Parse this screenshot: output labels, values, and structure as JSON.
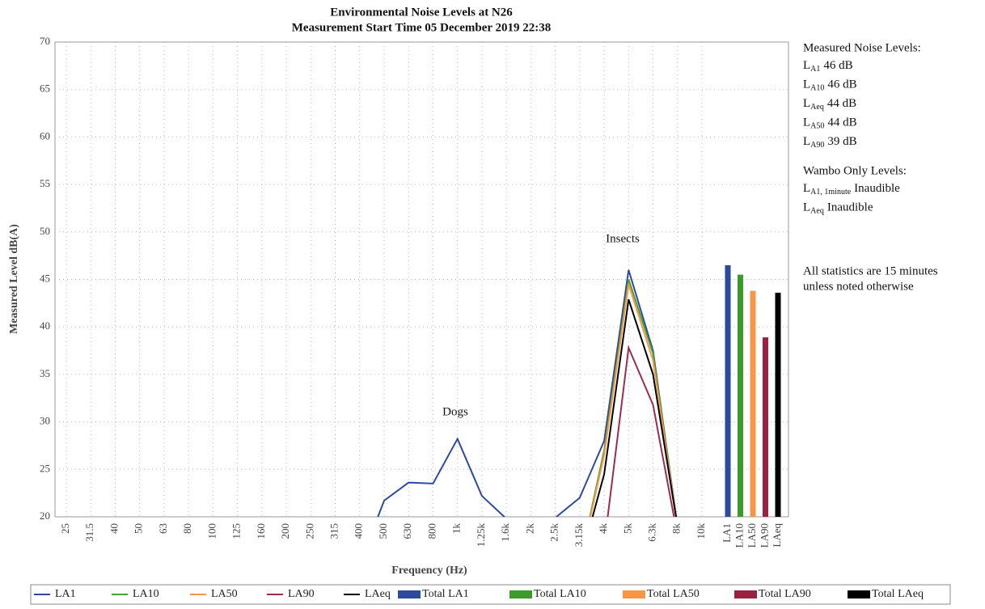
{
  "chart_data": {
    "type": "line",
    "title": "Environmental Noise Levels at N26",
    "subtitle": "Measurement Start Time 05 December 2019 22:38",
    "xlabel": "Frequency (Hz)",
    "ylabel": "Measured Level dB(A)",
    "categories": [
      "25",
      "31.5",
      "40",
      "50",
      "63",
      "80",
      "100",
      "125",
      "160",
      "200",
      "250",
      "315",
      "400",
      "500",
      "630",
      "800",
      "1k",
      "1.25k",
      "1.6k",
      "2k",
      "2.5k",
      "3.15k",
      "4k",
      "5k",
      "6.3k",
      "8k",
      "10k"
    ],
    "series": [
      {
        "name": "LA1",
        "color": "#2e4aa0",
        "values": [
          null,
          null,
          null,
          null,
          null,
          null,
          null,
          null,
          null,
          null,
          null,
          null,
          15,
          21.7,
          23.6,
          23.5,
          28.2,
          22.2,
          19.8,
          18,
          19.9,
          22,
          28,
          46,
          37.5,
          19,
          null
        ]
      },
      {
        "name": "LA10",
        "color": "#4aa032",
        "values": [
          null,
          null,
          null,
          null,
          null,
          null,
          null,
          null,
          null,
          null,
          null,
          null,
          null,
          null,
          null,
          null,
          null,
          null,
          null,
          null,
          null,
          15,
          27,
          45,
          37.2,
          19,
          null
        ]
      },
      {
        "name": "LA50",
        "color": "#f79646",
        "values": [
          null,
          null,
          null,
          null,
          null,
          null,
          null,
          null,
          null,
          null,
          null,
          null,
          null,
          null,
          null,
          null,
          null,
          null,
          null,
          null,
          null,
          15,
          26.5,
          44.5,
          36.5,
          19,
          null
        ]
      },
      {
        "name": "LA90",
        "color": "#9b2c50",
        "values": [
          null,
          null,
          null,
          null,
          null,
          null,
          null,
          null,
          null,
          null,
          null,
          null,
          null,
          null,
          null,
          null,
          null,
          null,
          null,
          null,
          null,
          null,
          17,
          37.8,
          31.8,
          18,
          null
        ]
      },
      {
        "name": "LAeq",
        "color": "#000000",
        "values": [
          null,
          null,
          null,
          null,
          null,
          null,
          null,
          null,
          null,
          null,
          null,
          null,
          null,
          null,
          null,
          null,
          null,
          null,
          null,
          null,
          null,
          15,
          24.5,
          42.9,
          35,
          19,
          null
        ]
      }
    ],
    "bar_series": [
      {
        "name": "Total LA1",
        "category": "LA1",
        "color": "#2e4a9e",
        "value": 46.5
      },
      {
        "name": "Total LA10",
        "category": "LA10",
        "color": "#3a9a2a",
        "value": 45.5
      },
      {
        "name": "Total LA50",
        "category": "LA50",
        "color": "#f79646",
        "value": 43.8
      },
      {
        "name": "Total LA90",
        "category": "LA90",
        "color": "#9b2143",
        "value": 38.9
      },
      {
        "name": "Total LAeq",
        "category": "LAeq",
        "color": "#000000",
        "value": 43.6
      }
    ],
    "annotations": [
      "Dogs",
      "Insects"
    ],
    "ylim": [
      20,
      70
    ],
    "yticks": [
      20,
      25,
      30,
      35,
      40,
      45,
      50,
      55,
      60,
      65,
      70
    ],
    "grid": true,
    "legend": "bottom"
  },
  "notes": {
    "heading": "Measured Noise Levels:",
    "items": [
      {
        "main": "L",
        "sub": "A1",
        "text": "46 dB"
      },
      {
        "main": "L",
        "sub": "A10",
        "text": "46 dB"
      },
      {
        "main": "L",
        "sub": "Aeq",
        "text": "44 dB"
      },
      {
        "main": "L",
        "sub": "A50",
        "text": "44 dB"
      },
      {
        "main": "L",
        "sub": "A90",
        "text": "39 dB"
      }
    ],
    "heading2": "Wambo Only Levels:",
    "items2": [
      {
        "main": "L",
        "sub": "A1, 1minute",
        "text": "Inaudible"
      },
      {
        "main": "L",
        "sub": "Aeq",
        "text": "Inaudible"
      }
    ],
    "footer": [
      "All statistics are 15 minutes",
      "unless noted otherwise"
    ]
  }
}
